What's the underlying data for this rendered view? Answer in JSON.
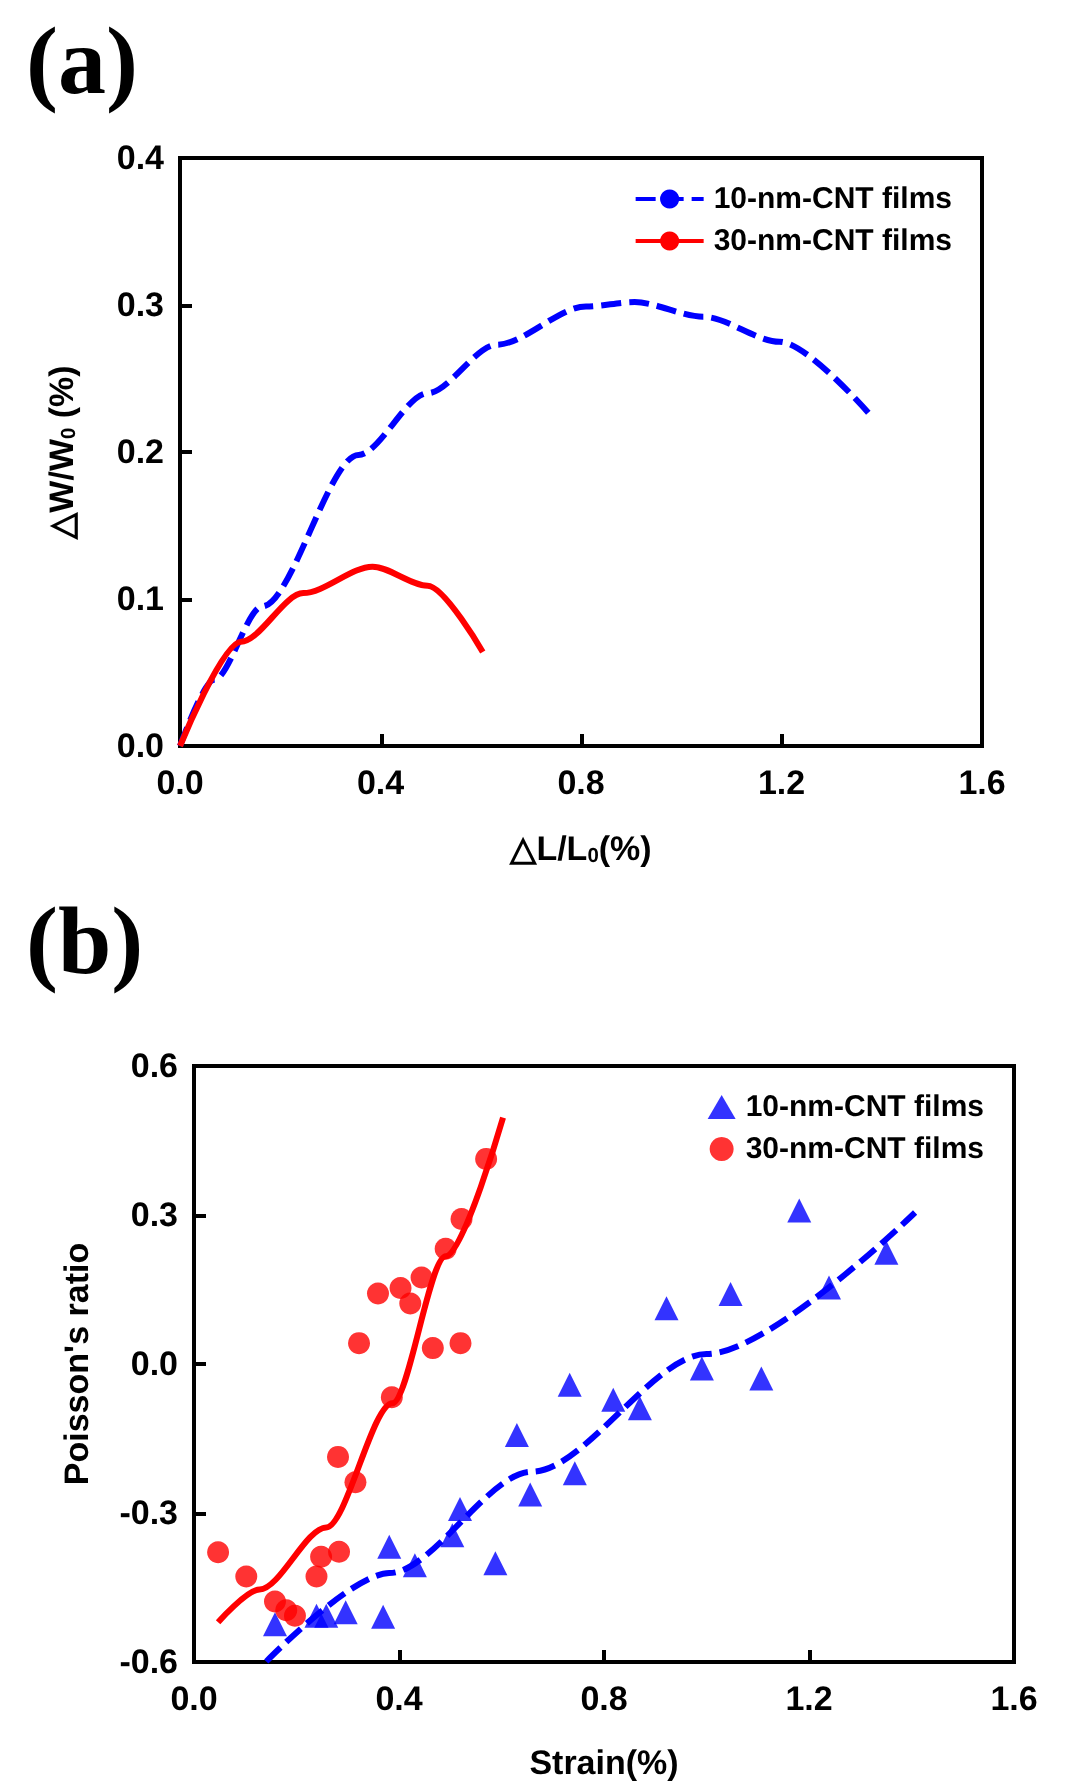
{
  "chart_data": [
    {
      "type": "line",
      "title": "(a)",
      "xlabel": "△L/L$_{0}$(%)",
      "ylabel": "△W/W$_{0}$ (%)",
      "xlim": [
        0,
        1.6
      ],
      "xticks": [
        {
          "value": 0,
          "label": "0.0"
        },
        0.4,
        0.8,
        1.2,
        1.6
      ],
      "ylim": [
        0,
        0.4
      ],
      "yticks": [
        {
          "value": 0,
          "label": "0.0"
        },
        0.1,
        0.2,
        0.3,
        0.4
      ],
      "grid": false,
      "legend": "top right",
      "series": [
        {
          "name": "10-nm-CNT films",
          "color": "#0000ff",
          "line_style": "dashed",
          "marker": "none",
          "x": [
            0,
            0.068,
            0.164,
            0.356,
            0.494,
            0.632,
            0.81,
            0.907,
            1.044,
            1.196,
            1.375
          ],
          "values": [
            0,
            0.045,
            0.095,
            0.198,
            0.24,
            0.273,
            0.299,
            0.302,
            0.292,
            0.275,
            0.226
          ]
        },
        {
          "name": "30-nm-CNT films",
          "color": "#ff0000",
          "line_style": "solid",
          "marker": "none",
          "x": [
            0,
            0.122,
            0.246,
            0.384,
            0.494,
            0.604
          ],
          "values": [
            0,
            0.071,
            0.104,
            0.122,
            0.109,
            0.064
          ]
        }
      ]
    },
    {
      "type": "scatter",
      "title": "(b)",
      "xlabel": "Strain(%)",
      "ylabel": "Poisson's ratio",
      "xlim": [
        0,
        1.6
      ],
      "xticks": [
        {
          "value": 0,
          "label": "0.0"
        },
        0.4,
        0.8,
        1.2,
        1.6
      ],
      "ylim": [
        -0.6,
        0.6
      ],
      "yticks": [
        -0.6,
        -0.3,
        {
          "value": 0,
          "label": "0.0"
        },
        0.3,
        0.6
      ],
      "grid": false,
      "legend": "top right",
      "series": [
        {
          "name": "10-nm-CNT films",
          "color": "#0000ff",
          "marker": "triangle",
          "x": [
            0.158,
            0.239,
            0.258,
            0.296,
            0.369,
            0.381,
            0.431,
            0.504,
            0.519,
            0.588,
            0.63,
            0.656,
            0.733,
            0.743,
            0.818,
            0.87,
            0.922,
            0.991,
            1.047,
            1.107,
            1.181,
            1.239,
            1.351
          ],
          "values": [
            -0.524,
            -0.507,
            -0.507,
            -0.5,
            -0.509,
            -0.368,
            -0.405,
            -0.345,
            -0.292,
            -0.401,
            -0.143,
            -0.263,
            -0.042,
            -0.22,
            -0.072,
            -0.089,
            0.112,
            -0.009,
            0.141,
            -0.029,
            0.309,
            0.154,
            0.224
          ]
        },
        {
          "name": "30-nm-CNT films",
          "color": "#ff0000",
          "marker": "circle",
          "x": [
            0.047,
            0.102,
            0.158,
            0.18,
            0.197,
            0.239,
            0.248,
            0.283,
            0.281,
            0.315,
            0.322,
            0.359,
            0.386,
            0.403,
            0.422,
            0.444,
            0.466,
            0.491,
            0.522,
            0.52,
            0.57
          ],
          "values": [
            -0.379,
            -0.428,
            -0.478,
            -0.496,
            -0.507,
            -0.428,
            -0.388,
            -0.378,
            -0.187,
            -0.238,
            0.042,
            0.142,
            -0.067,
            0.153,
            0.122,
            0.174,
            0.032,
            0.232,
            0.292,
            0.042,
            0.413
          ]
        },
        {
          "type": "line",
          "color": "#0000ff",
          "line_style": "dashed",
          "marker": "none",
          "x": [
            0.141,
            0.381,
            0.659,
            1.0,
            1.407
          ],
          "values": [
            -0.599,
            -0.421,
            -0.217,
            0.02,
            0.305
          ]
        },
        {
          "type": "line",
          "color": "#ff0000",
          "line_style": "solid",
          "marker": "none",
          "x": [
            0.047,
            0.128,
            0.258,
            0.387,
            0.491,
            0.603
          ],
          "values": [
            -0.52,
            -0.454,
            -0.329,
            -0.079,
            0.217,
            0.496
          ]
        }
      ]
    }
  ]
}
